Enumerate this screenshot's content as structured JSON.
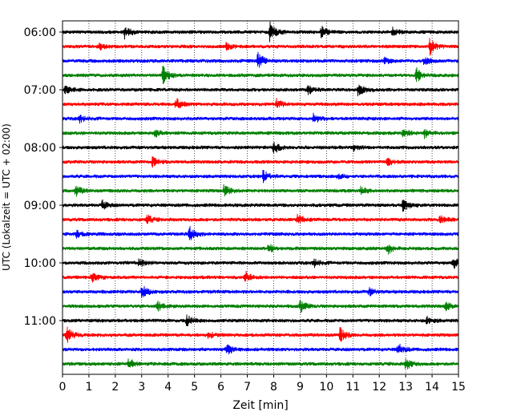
{
  "chart_data": {
    "type": "line",
    "title": "",
    "xlabel": "Zeit  [min]",
    "ylabel": "UTC (Lokalzeit = UTC + 02:00)",
    "xlim": [
      0,
      15
    ],
    "x_ticks": [
      "0",
      "1",
      "2",
      "3",
      "4",
      "5",
      "6",
      "7",
      "8",
      "9",
      "10",
      "11",
      "12",
      "13",
      "14",
      "15"
    ],
    "y_tick_labels": [
      "06:00",
      "07:00",
      "08:00",
      "09:00",
      "10:00",
      "11:00"
    ],
    "trace_interval_min": 15,
    "start_time": "06:00",
    "trace_colors": [
      "#000000",
      "#ff0000",
      "#0000ff",
      "#008000"
    ],
    "traces": [
      {
        "start": "06:00",
        "color": "#000000",
        "events": [
          [
            2.35,
            1.0
          ],
          [
            7.85,
            1.6
          ],
          [
            9.8,
            0.9
          ],
          [
            12.5,
            0.6
          ]
        ]
      },
      {
        "start": "06:15",
        "color": "#ff0000",
        "events": [
          [
            1.4,
            0.5
          ],
          [
            6.2,
            0.5
          ],
          [
            13.9,
            1.3
          ]
        ]
      },
      {
        "start": "06:30",
        "color": "#0000ff",
        "events": [
          [
            7.4,
            1.4
          ],
          [
            12.2,
            0.5
          ],
          [
            13.7,
            0.6
          ]
        ]
      },
      {
        "start": "06:45",
        "color": "#008000",
        "events": [
          [
            3.8,
            1.5
          ],
          [
            13.4,
            1.2
          ]
        ]
      },
      {
        "start": "07:00",
        "color": "#000000",
        "events": [
          [
            0.1,
            0.7
          ],
          [
            9.3,
            0.7
          ],
          [
            11.2,
            1.0
          ]
        ]
      },
      {
        "start": "07:15",
        "color": "#ff0000",
        "events": [
          [
            4.3,
            0.9
          ],
          [
            8.1,
            0.8
          ]
        ]
      },
      {
        "start": "07:30",
        "color": "#0000ff",
        "events": [
          [
            0.6,
            0.7
          ],
          [
            9.5,
            0.9
          ]
        ]
      },
      {
        "start": "07:45",
        "color": "#008000",
        "events": [
          [
            3.5,
            0.6
          ],
          [
            12.9,
            0.6
          ],
          [
            13.7,
            0.7
          ]
        ]
      },
      {
        "start": "08:00",
        "color": "#000000",
        "events": [
          [
            8.0,
            1.0
          ],
          [
            11.0,
            0.5
          ]
        ]
      },
      {
        "start": "08:15",
        "color": "#ff0000",
        "events": [
          [
            3.4,
            0.8
          ],
          [
            12.3,
            0.6
          ]
        ]
      },
      {
        "start": "08:30",
        "color": "#0000ff",
        "events": [
          [
            7.6,
            0.9
          ],
          [
            10.4,
            0.5
          ]
        ]
      },
      {
        "start": "08:45",
        "color": "#008000",
        "events": [
          [
            0.5,
            0.8
          ],
          [
            6.1,
            1.0
          ],
          [
            11.3,
            0.6
          ]
        ]
      },
      {
        "start": "09:00",
        "color": "#000000",
        "events": [
          [
            1.5,
            0.7
          ],
          [
            12.9,
            1.0
          ]
        ]
      },
      {
        "start": "09:15",
        "color": "#ff0000",
        "events": [
          [
            3.2,
            0.7
          ],
          [
            8.9,
            0.9
          ],
          [
            14.3,
            0.8
          ]
        ]
      },
      {
        "start": "09:30",
        "color": "#0000ff",
        "events": [
          [
            0.5,
            0.6
          ],
          [
            4.8,
            1.3
          ]
        ]
      },
      {
        "start": "09:45",
        "color": "#008000",
        "events": [
          [
            7.8,
            0.7
          ],
          [
            12.3,
            0.9
          ]
        ]
      },
      {
        "start": "10:00",
        "color": "#000000",
        "events": [
          [
            2.9,
            0.6
          ],
          [
            9.5,
            0.7
          ],
          [
            14.8,
            0.8
          ]
        ]
      },
      {
        "start": "10:15",
        "color": "#ff0000",
        "events": [
          [
            1.1,
            0.8
          ],
          [
            6.9,
            1.0
          ]
        ]
      },
      {
        "start": "10:30",
        "color": "#0000ff",
        "events": [
          [
            3.0,
            1.1
          ],
          [
            11.6,
            0.6
          ]
        ]
      },
      {
        "start": "10:45",
        "color": "#008000",
        "events": [
          [
            3.6,
            0.7
          ],
          [
            9.0,
            1.0
          ],
          [
            14.5,
            0.7
          ]
        ]
      },
      {
        "start": "11:00",
        "color": "#000000",
        "events": [
          [
            4.7,
            0.9
          ],
          [
            13.8,
            0.6
          ]
        ]
      },
      {
        "start": "11:15",
        "color": "#ff0000",
        "events": [
          [
            0.15,
            1.3
          ],
          [
            5.5,
            0.6
          ],
          [
            10.5,
            1.2
          ]
        ]
      },
      {
        "start": "11:30",
        "color": "#0000ff",
        "events": [
          [
            6.2,
            1.0
          ],
          [
            12.7,
            1.0
          ]
        ]
      },
      {
        "start": "11:45",
        "color": "#008000",
        "events": [
          [
            2.5,
            0.9
          ],
          [
            13.0,
            1.0
          ]
        ]
      }
    ]
  }
}
